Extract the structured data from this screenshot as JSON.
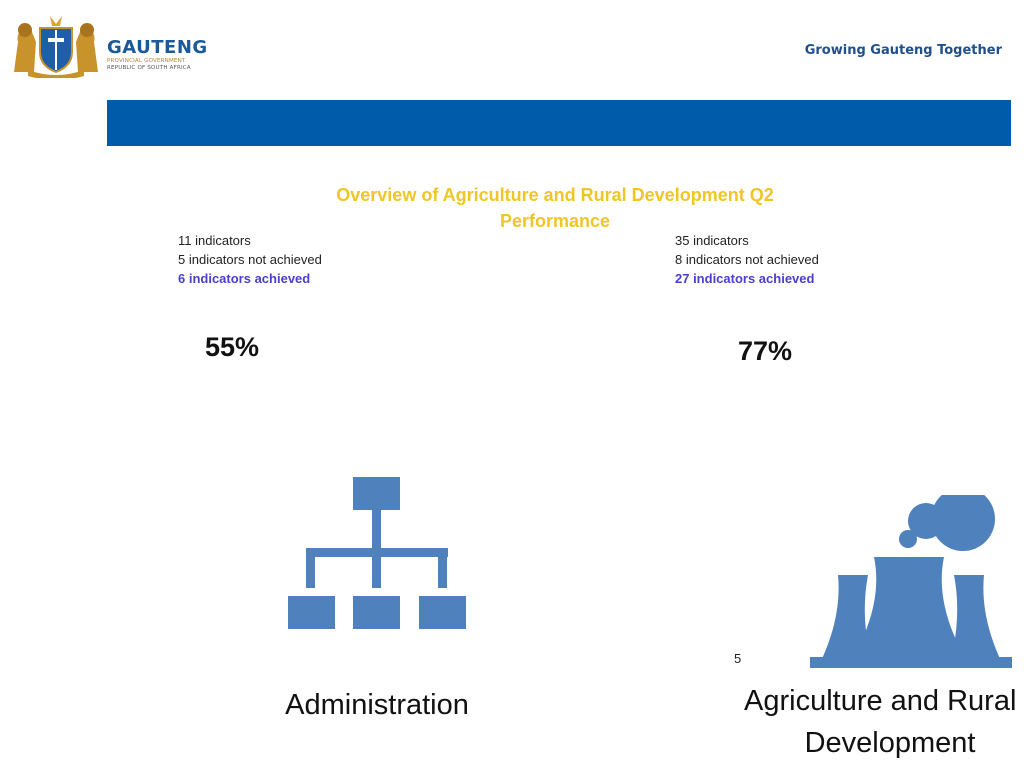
{
  "header": {
    "brand_name": "GAUTENG",
    "brand_line1": "PROVINCIAL GOVERNMENT",
    "brand_line2": "REPUBLIC OF SOUTH AFRICA",
    "slogan": "Growing Gauteng Together"
  },
  "slide": {
    "title": "Overview of Agriculture and Rural Development Q2 Performance",
    "page_number": "5"
  },
  "programmes": [
    {
      "indicators": "11 indicators",
      "not_achieved": "5 indicators not achieved",
      "achieved": "6 indicators achieved",
      "percentage": "55%",
      "icon": "org-chart-icon",
      "label": "Administration"
    },
    {
      "indicators": "35 indicators",
      "not_achieved": "8 indicators not achieved",
      "achieved": "27 indicators achieved",
      "percentage": "77%",
      "icon": "factory-icon",
      "label_line1": "Agriculture and Rural",
      "label_line2": "Development"
    }
  ],
  "colors": {
    "banner": "#005bab",
    "title": "#f2c526",
    "achieved_text": "#4a3fd0",
    "icon_fill": "#4f81bd"
  }
}
